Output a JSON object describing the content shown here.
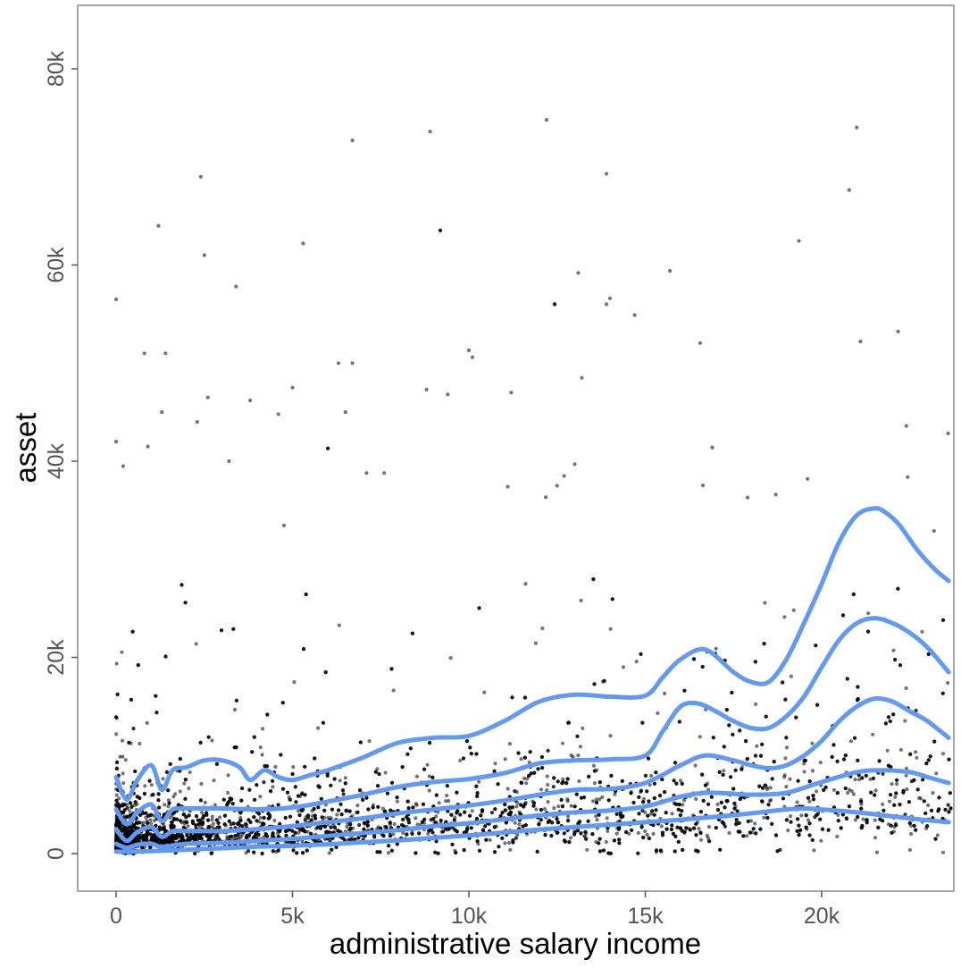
{
  "chart_data": {
    "type": "scatter",
    "title": "",
    "xlabel": "administrative salary income",
    "ylabel": "asset",
    "xlim": [
      -1100,
      23600
    ],
    "ylim": [
      -4000,
      86000
    ],
    "x_ticks": [
      {
        "value": 0,
        "label": "0"
      },
      {
        "value": 5000,
        "label": "5k"
      },
      {
        "value": 10000,
        "label": "10k"
      },
      {
        "value": 15000,
        "label": "15k"
      },
      {
        "value": 20000,
        "label": "20k"
      }
    ],
    "y_ticks": [
      {
        "value": 0,
        "label": "0"
      },
      {
        "value": 20000,
        "label": "20k"
      },
      {
        "value": 40000,
        "label": "40k"
      },
      {
        "value": 60000,
        "label": "60k"
      },
      {
        "value": 80000,
        "label": "80k"
      }
    ],
    "grid": false,
    "legend": "none",
    "point_color": "#000000",
    "line_color": "#6199F5",
    "background": "#ffffff",
    "outliers": [
      {
        "x": 0,
        "y": 56500
      },
      {
        "x": 0,
        "y": 42000
      },
      {
        "x": 200,
        "y": 39500
      },
      {
        "x": 800,
        "y": 51000
      },
      {
        "x": 900,
        "y": 41500
      },
      {
        "x": 1200,
        "y": 64000
      },
      {
        "x": 1400,
        "y": 51000
      },
      {
        "x": 1300,
        "y": 45000
      },
      {
        "x": 2400,
        "y": 69000
      },
      {
        "x": 2500,
        "y": 61000
      },
      {
        "x": 2600,
        "y": 46500
      },
      {
        "x": 2300,
        "y": 44000
      },
      {
        "x": 3400,
        "y": 57800
      },
      {
        "x": 3800,
        "y": 46200
      },
      {
        "x": 3200,
        "y": 40000
      },
      {
        "x": 4600,
        "y": 44800
      },
      {
        "x": 5000,
        "y": 47500
      },
      {
        "x": 5300,
        "y": 62200
      },
      {
        "x": 6300,
        "y": 50000
      },
      {
        "x": 6700,
        "y": 50000
      },
      {
        "x": 6700,
        "y": 72700
      },
      {
        "x": 6500,
        "y": 45000
      },
      {
        "x": 7100,
        "y": 38800
      },
      {
        "x": 7600,
        "y": 38800
      },
      {
        "x": 8800,
        "y": 47300
      },
      {
        "x": 8900,
        "y": 73600
      },
      {
        "x": 9400,
        "y": 46800
      },
      {
        "x": 10000,
        "y": 51300
      },
      {
        "x": 10100,
        "y": 50600
      },
      {
        "x": 11200,
        "y": 47000
      },
      {
        "x": 12200,
        "y": 74800
      },
      {
        "x": 13100,
        "y": 59200
      },
      {
        "x": 13200,
        "y": 48500
      },
      {
        "x": 13000,
        "y": 39700
      },
      {
        "x": 13900,
        "y": 56000
      },
      {
        "x": 14000,
        "y": 56600
      },
      {
        "x": 13900,
        "y": 69300
      },
      {
        "x": 14700,
        "y": 54900
      },
      {
        "x": 15700,
        "y": 59400
      },
      {
        "x": 16900,
        "y": 41400
      },
      {
        "x": 17900,
        "y": 36300
      },
      {
        "x": 18700,
        "y": 36600
      },
      {
        "x": 19600,
        "y": 38200
      },
      {
        "x": 21100,
        "y": 52200
      },
      {
        "x": 22400,
        "y": 43600
      },
      {
        "x": 12500,
        "y": 37500
      },
      {
        "x": 12700,
        "y": 38500
      },
      {
        "x": 11100,
        "y": 37400
      }
    ],
    "series": [
      {
        "x": [
          0,
          300,
          600,
          1000,
          1300,
          1600,
          2000,
          2500,
          3000,
          3500,
          3800,
          4200,
          4600,
          5000,
          5500,
          6000,
          7000,
          8000,
          9000,
          10000,
          11000,
          12000,
          13000,
          14000,
          15000,
          15500,
          16000,
          16700,
          17500,
          18000,
          18500,
          19000,
          19500,
          20000,
          20500,
          21000,
          21500,
          21800,
          22200,
          22700,
          23200,
          23600
        ],
        "y": [
          7800,
          5500,
          7500,
          9000,
          6500,
          8500,
          8800,
          9500,
          9500,
          8800,
          7500,
          8500,
          7800,
          7500,
          8000,
          8500,
          9800,
          11300,
          11800,
          12000,
          13500,
          15500,
          16200,
          16000,
          16100,
          18000,
          19800,
          20800,
          18500,
          17500,
          17500,
          19800,
          23500,
          27500,
          31800,
          34500,
          35200,
          34800,
          33500,
          31000,
          29000,
          27800
        ]
      },
      {
        "x": [
          0,
          300,
          600,
          1000,
          1300,
          1600,
          2000,
          3000,
          4000,
          5000,
          6000,
          7000,
          8000,
          9000,
          10000,
          11000,
          12000,
          13000,
          14000,
          15000,
          15500,
          16000,
          16500,
          17000,
          17500,
          18000,
          18500,
          19000,
          19500,
          20000,
          20500,
          21000,
          21500,
          22000,
          22500,
          23000,
          23600
        ],
        "y": [
          4500,
          3000,
          4200,
          5000,
          3300,
          4500,
          4600,
          4600,
          4500,
          4700,
          5300,
          6000,
          6800,
          7300,
          7600,
          8200,
          9200,
          9500,
          9600,
          10000,
          12500,
          15000,
          15300,
          14500,
          13500,
          12800,
          12800,
          14000,
          16000,
          19000,
          21800,
          23500,
          24000,
          23500,
          22500,
          21000,
          18500
        ]
      },
      {
        "x": [
          0,
          300,
          600,
          1000,
          1300,
          1600,
          2000,
          3000,
          4000,
          5000,
          6000,
          7000,
          8000,
          9000,
          10000,
          11000,
          12000,
          13000,
          14000,
          15000,
          16000,
          16700,
          17500,
          18000,
          18500,
          19000,
          19500,
          20000,
          20500,
          21000,
          21500,
          22000,
          22500,
          23000,
          23600
        ],
        "y": [
          2500,
          1300,
          2200,
          2700,
          1700,
          2300,
          2300,
          2300,
          2500,
          2800,
          3200,
          3600,
          4100,
          4500,
          4900,
          5400,
          6000,
          6500,
          6600,
          7200,
          9000,
          10000,
          9500,
          9000,
          8700,
          9000,
          10000,
          11500,
          13500,
          15000,
          15800,
          15500,
          14500,
          13500,
          11800
        ]
      },
      {
        "x": [
          0,
          300,
          600,
          1000,
          1300,
          2000,
          3000,
          4000,
          5000,
          6000,
          7000,
          8000,
          9000,
          10000,
          11000,
          12000,
          13000,
          14000,
          15000,
          16000,
          16700,
          17500,
          18000,
          19000,
          20000,
          21000,
          21700,
          22500,
          23000,
          23600
        ],
        "y": [
          1000,
          600,
          900,
          1000,
          700,
          1000,
          1100,
          1300,
          1500,
          1800,
          2100,
          2400,
          2800,
          3100,
          3500,
          3900,
          4200,
          4400,
          4800,
          5800,
          6200,
          6100,
          6000,
          6200,
          7300,
          8300,
          8500,
          8300,
          7800,
          7200
        ]
      },
      {
        "x": [
          0,
          500,
          1000,
          2000,
          3000,
          4000,
          5000,
          6000,
          7000,
          8000,
          9000,
          10000,
          11000,
          12000,
          13000,
          14000,
          15000,
          16000,
          17000,
          18000,
          19000,
          19500,
          20000,
          21000,
          22000,
          23000,
          23600
        ],
        "y": [
          200,
          200,
          250,
          400,
          550,
          700,
          800,
          950,
          1150,
          1350,
          1600,
          1850,
          2150,
          2450,
          2700,
          2950,
          3200,
          3450,
          3750,
          4100,
          4500,
          4600,
          4500,
          4200,
          3800,
          3400,
          3200
        ]
      }
    ]
  }
}
